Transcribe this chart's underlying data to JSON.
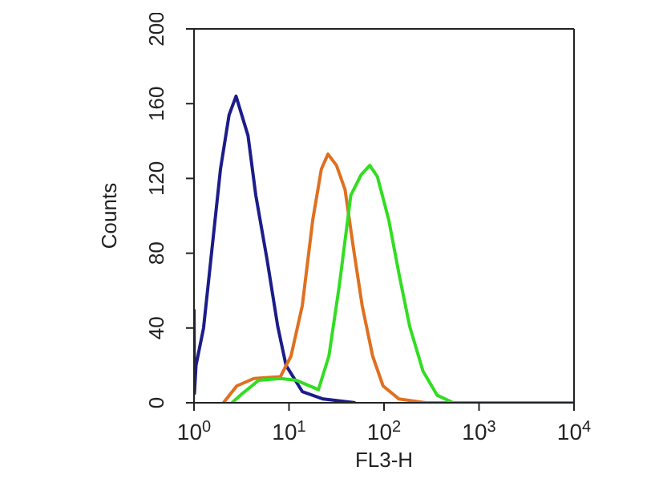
{
  "chart_data": {
    "type": "line",
    "xlabel": "FL3-H",
    "ylabel": "Counts",
    "log": "x",
    "xlim": [
      1,
      10000
    ],
    "xticks": [
      {
        "value": 1,
        "label": "10$^{0}$"
      },
      {
        "value": 10,
        "label": "10$^{1}$"
      },
      {
        "value": 100,
        "label": "10$^{2}$"
      },
      {
        "value": 1000,
        "label": "10$^{3}$"
      },
      {
        "value": 10000,
        "label": "10$^{4}$"
      }
    ],
    "ylim": [
      0,
      200
    ],
    "yticks": [
      0,
      40,
      80,
      120,
      160,
      200
    ],
    "marker": "none",
    "line_style": "solid",
    "series": [
      {
        "color": "#1c1c8a",
        "x": [
          1,
          1.01,
          1.05,
          1.26,
          1.9,
          2.34,
          2.77,
          3.7,
          4.47,
          5.9,
          7.6,
          9.3,
          13.8,
          22.9,
          50
        ],
        "values": [
          50,
          5,
          20,
          40,
          125,
          154,
          164,
          143,
          111,
          76,
          41,
          20,
          6,
          2,
          0
        ]
      },
      {
        "color": "#e07020",
        "x": [
          2.04,
          2.82,
          4.27,
          8.13,
          10.5,
          13.8,
          17.8,
          21.9,
          25.7,
          31.6,
          38.9,
          47.9,
          58.9,
          75.9,
          97.7,
          144,
          275,
          10000
        ],
        "values": [
          0,
          9,
          13,
          14,
          25,
          52,
          98,
          125,
          133,
          127,
          114,
          82,
          52,
          25,
          9,
          2,
          0,
          0
        ]
      },
      {
        "color": "#33dd22",
        "x": [
          2.51,
          3.24,
          4.79,
          8.13,
          12,
          20.4,
          26.3,
          33.9,
          44.7,
          57.5,
          70.8,
          85.1,
          112,
          145,
          186,
          257,
          363,
          537
        ],
        "values": [
          0,
          5,
          12,
          13,
          12,
          7,
          25,
          63,
          111,
          122,
          127,
          121,
          98,
          68,
          41,
          17,
          4,
          0
        ]
      }
    ]
  }
}
